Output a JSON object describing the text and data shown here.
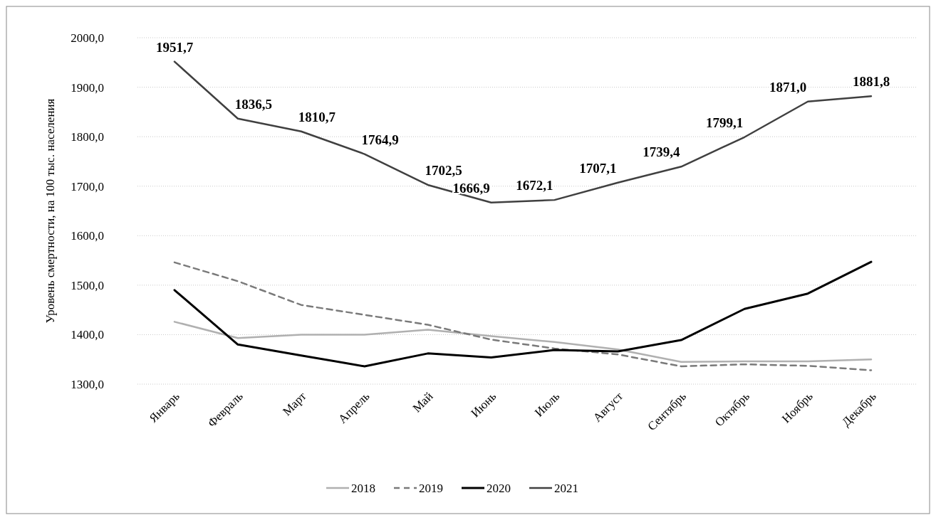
{
  "chart_data": {
    "type": "line",
    "ylabel": "Уровень смертности, на 100 тыс. населения",
    "categories": [
      "Январь",
      "Февраль",
      "Март",
      "Апрель",
      "Май",
      "Июнь",
      "Июль",
      "Август",
      "Сентябрь",
      "Октябрь",
      "Ноябрь",
      "Декабрь"
    ],
    "series": [
      {
        "name": "2018",
        "color": "#b0b0b0",
        "line_style": "solid",
        "values": [
          1426,
          1393,
          1400,
          1400,
          1410,
          1397,
          1385,
          1370,
          1345,
          1346,
          1346,
          1350
        ]
      },
      {
        "name": "2019",
        "color": "#7a7a7a",
        "line_style": "dashed",
        "values": [
          1546,
          1508,
          1460,
          1440,
          1420,
          1390,
          1372,
          1360,
          1336,
          1340,
          1337,
          1328
        ]
      },
      {
        "name": "2020",
        "color": "#000000",
        "line_style": "solid",
        "values": [
          1490,
          1380,
          1358,
          1336,
          1362,
          1354,
          1369,
          1366,
          1389,
          1452,
          1483,
          1547
        ]
      },
      {
        "name": "2021",
        "color": "#404040",
        "line_style": "solid",
        "values": [
          1951.7,
          1836.5,
          1810.7,
          1764.9,
          1702.5,
          1666.9,
          1672.1,
          1707.1,
          1739.4,
          1799.1,
          1871.0,
          1881.8
        ],
        "value_labels": [
          "1951,7",
          "1836,5",
          "1810,7",
          "1764,9",
          "1702,5",
          "1666,9",
          "1672,1",
          "1707,1",
          "1739,4",
          "1799,1",
          "1871,0",
          "1881,8"
        ]
      }
    ],
    "ylim": [
      1300,
      2000
    ],
    "yticks": [
      {
        "value": 1300,
        "label": "1300,0"
      },
      {
        "value": 1400,
        "label": "1400,0"
      },
      {
        "value": 1500,
        "label": "1500,0"
      },
      {
        "value": 1600,
        "label": "1600,0"
      },
      {
        "value": 1700,
        "label": "1700,0"
      },
      {
        "value": 1800,
        "label": "1800,0"
      },
      {
        "value": 1900,
        "label": "1900,0"
      },
      {
        "value": 2000,
        "label": "2000,0"
      }
    ],
    "grid": "y",
    "legend": "bottom"
  }
}
